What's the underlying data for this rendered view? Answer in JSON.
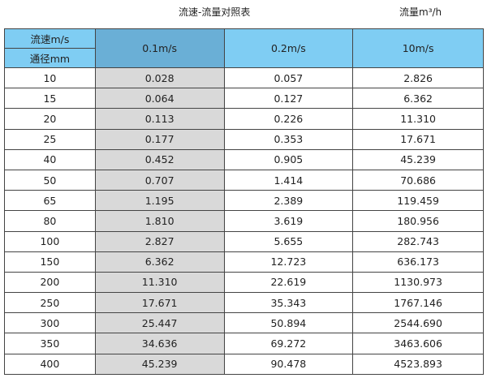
{
  "title": "流速-流量对照表",
  "unit_label": "流量m³/h",
  "header": {
    "velocity_label": "流速m/s",
    "diameter_label": "通径mm",
    "columns": [
      "0.1m/s",
      "0.2m/s",
      "10m/s"
    ]
  },
  "colors": {
    "header": "#7fcdf3",
    "header_selected": "#6aafd6",
    "highlight_column": "#d9d9d9"
  },
  "rows": [
    [
      "10",
      "0.028",
      "0.057",
      "2.826"
    ],
    [
      "15",
      "0.064",
      "0.127",
      "6.362"
    ],
    [
      "20",
      "0.113",
      "0.226",
      "11.310"
    ],
    [
      "25",
      "0.177",
      "0.353",
      "17.671"
    ],
    [
      "40",
      "0.452",
      "0.905",
      "45.239"
    ],
    [
      "50",
      "0.707",
      "1.414",
      "70.686"
    ],
    [
      "65",
      "1.195",
      "2.389",
      "119.459"
    ],
    [
      "80",
      "1.810",
      "3.619",
      "180.956"
    ],
    [
      "100",
      "2.827",
      "5.655",
      "282.743"
    ],
    [
      "150",
      "6.362",
      "12.723",
      "636.173"
    ],
    [
      "200",
      "11.310",
      "22.619",
      "1130.973"
    ],
    [
      "250",
      "17.671",
      "35.343",
      "1767.146"
    ],
    [
      "300",
      "25.447",
      "50.894",
      "2544.690"
    ],
    [
      "350",
      "34.636",
      "69.272",
      "3463.606"
    ],
    [
      "400",
      "45.239",
      "90.478",
      "4523.893"
    ]
  ]
}
